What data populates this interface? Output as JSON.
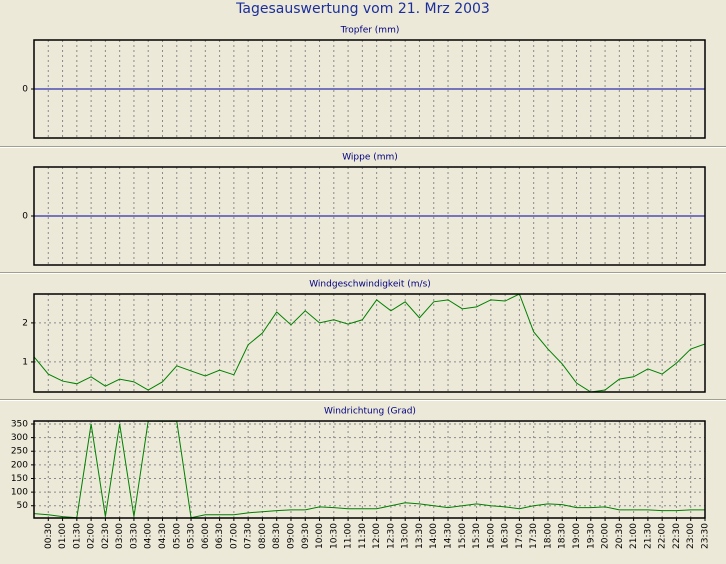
{
  "title": "Tagesauswertung vom 21. Mrz 2003",
  "chart_data": [
    {
      "type": "line",
      "title": "Tropfer (mm)",
      "color": "#0000a0",
      "ylim": [
        -1,
        1
      ],
      "yticks": [
        0
      ],
      "values": [
        0,
        0,
        0,
        0,
        0,
        0,
        0,
        0,
        0,
        0,
        0,
        0,
        0,
        0,
        0,
        0,
        0,
        0,
        0,
        0,
        0,
        0,
        0,
        0,
        0,
        0,
        0,
        0,
        0,
        0,
        0,
        0,
        0,
        0,
        0,
        0,
        0,
        0,
        0,
        0,
        0,
        0,
        0,
        0,
        0,
        0,
        0,
        0
      ]
    },
    {
      "type": "line",
      "title": "Wippe (mm)",
      "color": "#0000a0",
      "ylim": [
        -1,
        1
      ],
      "yticks": [
        0
      ],
      "values": [
        0,
        0,
        0,
        0,
        0,
        0,
        0,
        0,
        0,
        0,
        0,
        0,
        0,
        0,
        0,
        0,
        0,
        0,
        0,
        0,
        0,
        0,
        0,
        0,
        0,
        0,
        0,
        0,
        0,
        0,
        0,
        0,
        0,
        0,
        0,
        0,
        0,
        0,
        0,
        0,
        0,
        0,
        0,
        0,
        0,
        0,
        0,
        0
      ]
    },
    {
      "type": "line",
      "title": "Windgeschwindigkeit (m/s)",
      "color": "#008000",
      "ylim": [
        0.23,
        2.74
      ],
      "yticks": [
        1,
        2
      ],
      "values": [
        1.13,
        0.69,
        0.51,
        0.44,
        0.62,
        0.38,
        0.56,
        0.49,
        0.28,
        0.49,
        0.9,
        0.77,
        0.64,
        0.79,
        0.67,
        1.44,
        1.74,
        2.28,
        1.95,
        2.31,
        2.0,
        2.08,
        1.97,
        2.08,
        2.59,
        2.31,
        2.54,
        2.13,
        2.54,
        2.59,
        2.36,
        2.41,
        2.59,
        2.56,
        2.74,
        1.77,
        1.33,
        0.95,
        0.46,
        0.23,
        0.28,
        0.56,
        0.62,
        0.82,
        0.69,
        0.97,
        1.33,
        1.46
      ]
    },
    {
      "type": "line",
      "title": "Windrichtung (Grad)",
      "color": "#008000",
      "ylim": [
        5,
        361
      ],
      "yticks": [
        50,
        100,
        150,
        200,
        250,
        300,
        350
      ],
      "categories": [
        null,
        "00:30",
        "01:00",
        "01:30",
        "02:00",
        "02:30",
        "03:00",
        "03:30",
        "04:00",
        "04:30",
        "05:00",
        "05:30",
        "06:00",
        "06:30",
        "07:00",
        "07:30",
        "08:00",
        "08:30",
        "09:00",
        "09:30",
        "10:00",
        "10:30",
        "11:00",
        "11:30",
        "12:00",
        "12:30",
        "13:00",
        "13:30",
        "14:00",
        "14:30",
        "15:00",
        "15:30",
        "16:00",
        "16:30",
        "17:00",
        "17:30",
        "18:00",
        "18:30",
        "19:00",
        "19:30",
        "20:00",
        "20:30",
        "21:00",
        "21:30",
        "22:00",
        "22:30",
        "23:00",
        "23:30"
      ],
      "values": [
        21,
        17,
        10,
        6,
        350,
        10,
        350,
        10,
        361,
        360,
        360,
        6,
        17,
        17,
        17,
        24,
        28,
        32,
        35,
        35,
        46,
        43,
        39,
        39,
        39,
        50,
        61,
        57,
        50,
        43,
        50,
        57,
        50,
        46,
        39,
        50,
        57,
        54,
        43,
        43,
        46,
        35,
        35,
        35,
        32,
        32,
        35,
        35
      ]
    }
  ]
}
